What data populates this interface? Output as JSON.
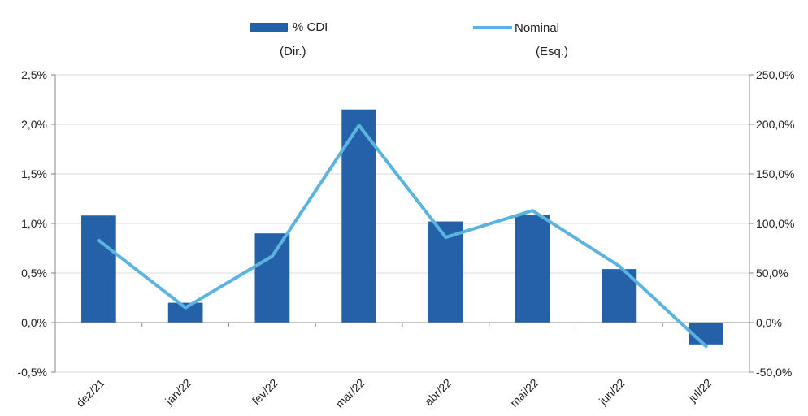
{
  "chart_data": {
    "type": "bar",
    "categories": [
      "dez/21",
      "jan/22",
      "fev/22",
      "mar/22",
      "abr/22",
      "mai/22",
      "jun/22",
      "jul/22"
    ],
    "series": [
      {
        "name": "% CDI",
        "axis_note": "(Dir.)",
        "type": "bar",
        "color": "#2561A8",
        "values": [
          1.08,
          0.2,
          0.9,
          2.15,
          1.02,
          1.09,
          0.54,
          -0.22
        ]
      },
      {
        "name": "Nominal",
        "axis_note": "(Esq.)",
        "type": "line",
        "color": "#5BB4E0",
        "values": [
          83,
          15,
          67,
          199,
          86,
          113,
          57,
          -24
        ]
      }
    ],
    "left_axis": {
      "ylim": [
        -0.5,
        2.5
      ],
      "ticks": [
        -0.5,
        0.0,
        0.5,
        1.0,
        1.5,
        2.0,
        2.5
      ],
      "tick_labels": [
        "-0,5%",
        "0,0%",
        "0,5%",
        "1,0%",
        "1,5%",
        "2,0%",
        "2,5%"
      ]
    },
    "right_axis": {
      "ylim": [
        -50,
        250
      ],
      "ticks": [
        -50,
        0,
        50,
        100,
        150,
        200,
        250
      ],
      "tick_labels": [
        "-50,0%",
        "0,0%",
        "50,0%",
        "100,0%",
        "150,0%",
        "200,0%",
        "250,0%"
      ]
    },
    "legend_position": "top-center",
    "grid": true
  }
}
